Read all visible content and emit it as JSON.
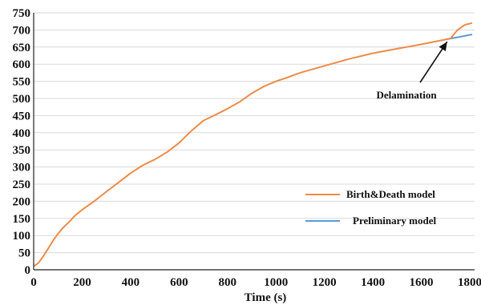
{
  "chart_data": {
    "type": "line",
    "title": "",
    "xlabel": "Time (s)",
    "ylabel": "",
    "xlim": [
      0,
      1820
    ],
    "ylim": [
      0,
      750
    ],
    "grid": true,
    "legend_position": "lower-right",
    "x_ticks": [
      "0",
      "200",
      "400",
      "600",
      "800",
      "1000",
      "1200",
      "1400",
      "1600",
      "1800"
    ],
    "y_ticks": [
      "0",
      "50",
      "100",
      "150",
      "200",
      "250",
      "300",
      "350",
      "400",
      "450",
      "500",
      "550",
      "600",
      "650",
      "700",
      "750"
    ],
    "series": [
      {
        "name": "Birth&Death model",
        "color": "#ed8b47",
        "points": [
          [
            0,
            10
          ],
          [
            20,
            20
          ],
          [
            40,
            40
          ],
          [
            60,
            62
          ],
          [
            80,
            85
          ],
          [
            100,
            105
          ],
          [
            120,
            122
          ],
          [
            150,
            142
          ],
          [
            170,
            158
          ],
          [
            200,
            175
          ],
          [
            250,
            200
          ],
          [
            300,
            228
          ],
          [
            350,
            255
          ],
          [
            400,
            282
          ],
          [
            450,
            305
          ],
          [
            500,
            322
          ],
          [
            550,
            343
          ],
          [
            600,
            370
          ],
          [
            650,
            405
          ],
          [
            700,
            435
          ],
          [
            750,
            452
          ],
          [
            800,
            470
          ],
          [
            850,
            490
          ],
          [
            900,
            515
          ],
          [
            950,
            535
          ],
          [
            1000,
            550
          ],
          [
            1050,
            562
          ],
          [
            1100,
            575
          ],
          [
            1200,
            595
          ],
          [
            1300,
            615
          ],
          [
            1400,
            632
          ],
          [
            1500,
            645
          ],
          [
            1600,
            658
          ],
          [
            1700,
            672
          ],
          [
            1720,
            675
          ],
          [
            1750,
            700
          ],
          [
            1780,
            715
          ],
          [
            1810,
            720
          ]
        ]
      },
      {
        "name": "Preliminary model",
        "color": "#5b9bd5",
        "points": [
          [
            1700,
            672
          ],
          [
            1720,
            675
          ],
          [
            1760,
            680
          ],
          [
            1810,
            687
          ]
        ]
      }
    ],
    "annotations": [
      {
        "text": "Delamination",
        "arrow_to": [
          1720,
          675
        ]
      }
    ]
  }
}
